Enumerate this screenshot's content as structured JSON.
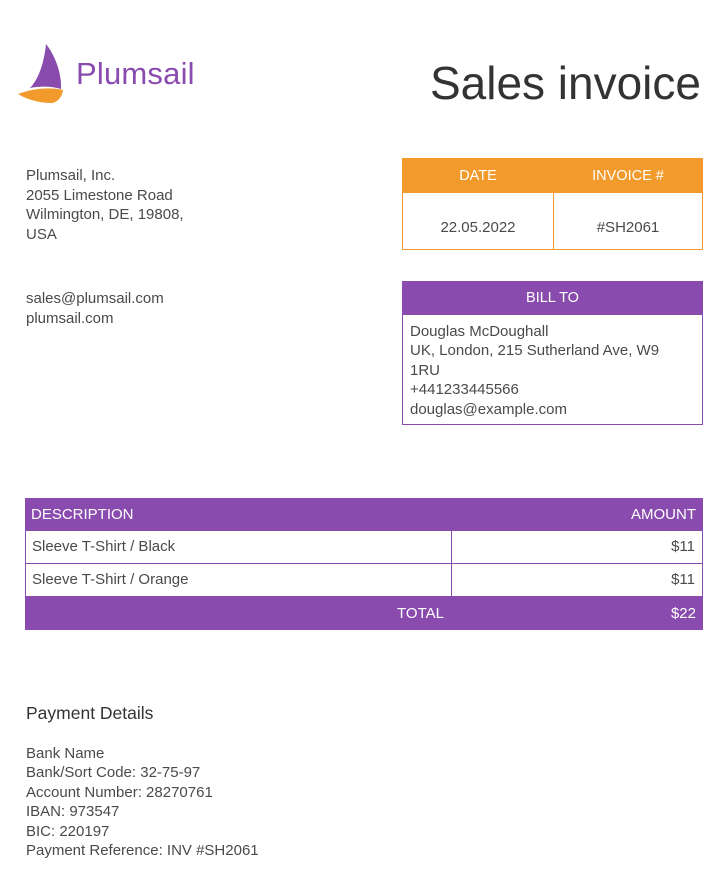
{
  "brand": {
    "name": "Plumsail",
    "logo_icon": "sail-icon",
    "primary_color": "#8a4baf",
    "accent_color": "#f29b2c"
  },
  "document_title": "Sales invoice",
  "company": {
    "address_lines": [
      "Plumsail, Inc.",
      "2055 Limestone Road",
      "Wilmington, DE, 19808,",
      "USA"
    ],
    "email": "sales@plumsail.com",
    "website": "plumsail.com"
  },
  "invoice_meta": {
    "date_label": "DATE",
    "invoice_label": "INVOICE #",
    "date_value": "22.05.2022",
    "invoice_value": "#SH2061"
  },
  "bill_to": {
    "label": "BILL TO",
    "lines": [
      "Douglas McDoughall",
      "UK, London, 215 Sutherland Ave, W9",
      "1RU",
      "+441233445566",
      "douglas@example.com"
    ]
  },
  "items_table": {
    "description_header": "DESCRIPTION",
    "amount_header": "AMOUNT",
    "rows": [
      {
        "description": "Sleeve T-Shirt / Black",
        "amount": "$11"
      },
      {
        "description": "Sleeve T-Shirt / Orange",
        "amount": "$11"
      }
    ],
    "total_label": "TOTAL",
    "total_value": "$22"
  },
  "payment": {
    "heading": "Payment Details",
    "lines": [
      "Bank Name",
      "Bank/Sort Code: 32-75-97",
      "Account Number: 28270761",
      "IBAN: 973547",
      "BIC: 220197",
      "Payment Reference: INV #SH2061"
    ]
  }
}
